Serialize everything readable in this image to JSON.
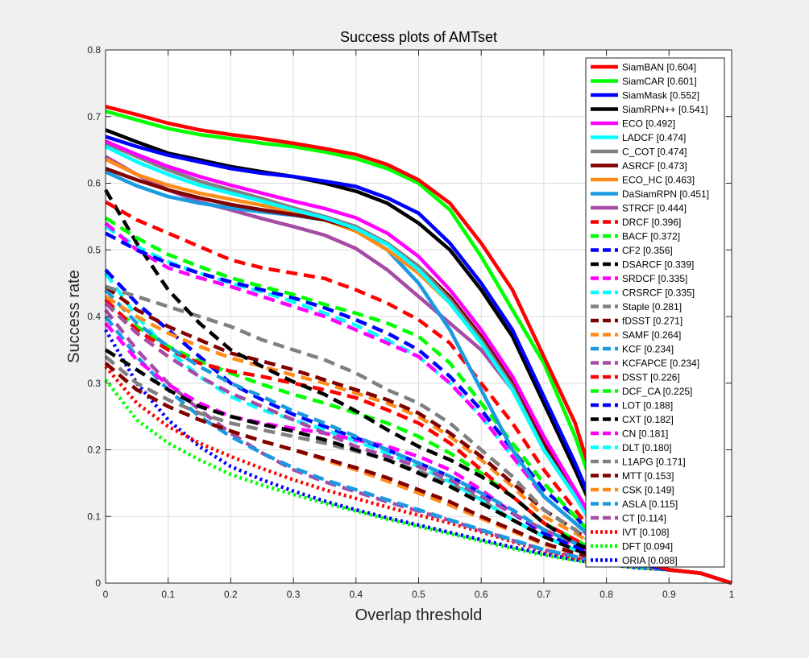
{
  "chart_data": {
    "type": "line",
    "title": "Success plots of AMTset",
    "xlabel": "Overlap threshold",
    "ylabel": "Success rate",
    "xlim": [
      0,
      1
    ],
    "ylim": [
      0,
      0.8
    ],
    "xticks": [
      0,
      0.1,
      0.2,
      0.3,
      0.4,
      0.5,
      0.6,
      0.7,
      0.8,
      0.9,
      1
    ],
    "yticks": [
      0,
      0.1,
      0.2,
      0.3,
      0.4,
      0.5,
      0.6,
      0.7,
      0.8
    ],
    "xtick_labels": [
      "0",
      "0.1",
      "0.2",
      "0.3",
      "0.4",
      "0.5",
      "0.6",
      "0.7",
      "0.8",
      "0.9",
      "1"
    ],
    "ytick_labels": [
      "0",
      "0.1",
      "0.2",
      "0.3",
      "0.4",
      "0.5",
      "0.6",
      "0.7",
      "0.8"
    ],
    "grid": true,
    "legend_position": "top-right",
    "x": [
      0,
      0.05,
      0.1,
      0.15,
      0.2,
      0.25,
      0.3,
      0.35,
      0.4,
      0.45,
      0.5,
      0.55,
      0.6,
      0.65,
      0.7,
      0.75,
      0.8,
      0.85,
      0.9,
      0.95,
      1
    ],
    "series": [
      {
        "name": "SiamBAN [0.604]",
        "color": "#ff0000",
        "style": "solid",
        "values": [
          0.715,
          0.703,
          0.69,
          0.68,
          0.673,
          0.667,
          0.66,
          0.652,
          0.643,
          0.628,
          0.605,
          0.57,
          0.51,
          0.44,
          0.34,
          0.24,
          0.09,
          0.035,
          0.02,
          0.015,
          0.0
        ]
      },
      {
        "name": "SiamCAR [0.601]",
        "color": "#00ff00",
        "style": "solid",
        "values": [
          0.708,
          0.695,
          0.682,
          0.673,
          0.667,
          0.66,
          0.655,
          0.647,
          0.637,
          0.622,
          0.6,
          0.56,
          0.49,
          0.41,
          0.33,
          0.22,
          0.085,
          0.035,
          0.02,
          0.015,
          0.0
        ]
      },
      {
        "name": "SiamMask [0.552]",
        "color": "#0000ff",
        "style": "solid",
        "values": [
          0.67,
          0.655,
          0.642,
          0.632,
          0.622,
          0.615,
          0.61,
          0.603,
          0.595,
          0.578,
          0.555,
          0.51,
          0.45,
          0.38,
          0.28,
          0.18,
          0.07,
          0.03,
          0.02,
          0.015,
          0.0
        ]
      },
      {
        "name": "SiamRPN++ [0.541]",
        "color": "#000000",
        "style": "solid",
        "values": [
          0.68,
          0.662,
          0.645,
          0.635,
          0.625,
          0.617,
          0.61,
          0.6,
          0.588,
          0.57,
          0.54,
          0.5,
          0.44,
          0.37,
          0.27,
          0.17,
          0.065,
          0.03,
          0.02,
          0.015,
          0.0
        ]
      },
      {
        "name": "ECO [0.492]",
        "color": "#ff00ff",
        "style": "solid",
        "values": [
          0.663,
          0.643,
          0.625,
          0.61,
          0.597,
          0.585,
          0.573,
          0.562,
          0.548,
          0.525,
          0.49,
          0.44,
          0.38,
          0.31,
          0.22,
          0.14,
          0.06,
          0.03,
          0.02,
          0.015,
          0.0
        ]
      },
      {
        "name": "LADCF [0.474]",
        "color": "#00ffff",
        "style": "solid",
        "values": [
          0.655,
          0.632,
          0.613,
          0.597,
          0.585,
          0.573,
          0.56,
          0.548,
          0.532,
          0.508,
          0.47,
          0.42,
          0.36,
          0.29,
          0.2,
          0.13,
          0.055,
          0.03,
          0.02,
          0.015,
          0.0
        ]
      },
      {
        "name": "C_COT [0.474]",
        "color": "#808080",
        "style": "solid",
        "values": [
          0.66,
          0.64,
          0.62,
          0.603,
          0.59,
          0.577,
          0.563,
          0.55,
          0.535,
          0.51,
          0.475,
          0.425,
          0.365,
          0.295,
          0.2,
          0.13,
          0.055,
          0.03,
          0.02,
          0.015,
          0.0
        ]
      },
      {
        "name": "ASRCF [0.473]",
        "color": "#800000",
        "style": "solid",
        "values": [
          0.622,
          0.605,
          0.59,
          0.578,
          0.568,
          0.56,
          0.553,
          0.545,
          0.532,
          0.51,
          0.475,
          0.43,
          0.37,
          0.3,
          0.21,
          0.135,
          0.055,
          0.03,
          0.02,
          0.015,
          0.0
        ]
      },
      {
        "name": "ECO_HC [0.463]",
        "color": "#ff8c1a",
        "style": "solid",
        "values": [
          0.636,
          0.613,
          0.597,
          0.585,
          0.576,
          0.567,
          0.557,
          0.545,
          0.528,
          0.5,
          0.465,
          0.42,
          0.36,
          0.29,
          0.2,
          0.13,
          0.055,
          0.03,
          0.02,
          0.015,
          0.0
        ]
      },
      {
        "name": "DaSiamRPN [0.451]",
        "color": "#1a9ae0",
        "style": "solid",
        "values": [
          0.617,
          0.596,
          0.58,
          0.57,
          0.563,
          0.557,
          0.552,
          0.545,
          0.53,
          0.5,
          0.45,
          0.38,
          0.29,
          0.2,
          0.13,
          0.09,
          0.05,
          0.03,
          0.02,
          0.015,
          0.0
        ]
      },
      {
        "name": "STRCF [0.444]",
        "color": "#a64ca6",
        "style": "solid",
        "values": [
          0.64,
          0.613,
          0.59,
          0.572,
          0.56,
          0.547,
          0.535,
          0.522,
          0.502,
          0.47,
          0.43,
          0.39,
          0.35,
          0.29,
          0.2,
          0.13,
          0.055,
          0.03,
          0.02,
          0.015,
          0.0
        ]
      },
      {
        "name": "DRCF [0.396]",
        "color": "#ff0000",
        "style": "dashed",
        "values": [
          0.572,
          0.545,
          0.525,
          0.505,
          0.485,
          0.473,
          0.465,
          0.457,
          0.44,
          0.42,
          0.395,
          0.36,
          0.3,
          0.24,
          0.17,
          0.11,
          0.05,
          0.03,
          0.02,
          0.015,
          0.0
        ]
      },
      {
        "name": "BACF [0.372]",
        "color": "#00ff00",
        "style": "dashed",
        "values": [
          0.548,
          0.518,
          0.493,
          0.475,
          0.458,
          0.445,
          0.433,
          0.418,
          0.405,
          0.39,
          0.37,
          0.33,
          0.27,
          0.21,
          0.15,
          0.1,
          0.05,
          0.03,
          0.02,
          0.015,
          0.0
        ]
      },
      {
        "name": "CF2 [0.356]",
        "color": "#0000ff",
        "style": "dashed",
        "values": [
          0.525,
          0.5,
          0.48,
          0.465,
          0.452,
          0.44,
          0.428,
          0.413,
          0.395,
          0.375,
          0.35,
          0.31,
          0.26,
          0.2,
          0.14,
          0.1,
          0.05,
          0.03,
          0.02,
          0.015,
          0.0
        ]
      },
      {
        "name": "DSARCF [0.339]",
        "color": "#000000",
        "style": "dashed",
        "values": [
          0.59,
          0.51,
          0.44,
          0.39,
          0.35,
          0.325,
          0.302,
          0.283,
          0.258,
          0.23,
          0.205,
          0.185,
          0.16,
          0.13,
          0.09,
          0.06,
          0.04,
          0.03,
          0.02,
          0.015,
          0.0
        ]
      },
      {
        "name": "SRDCF [0.335]",
        "color": "#ff00ff",
        "style": "dashed",
        "values": [
          0.54,
          0.5,
          0.473,
          0.458,
          0.445,
          0.43,
          0.415,
          0.4,
          0.38,
          0.36,
          0.34,
          0.3,
          0.25,
          0.19,
          0.13,
          0.09,
          0.045,
          0.03,
          0.02,
          0.015,
          0.0
        ]
      },
      {
        "name": "CRSRCF [0.335]",
        "color": "#00ffff",
        "style": "dashed",
        "values": [
          0.535,
          0.505,
          0.482,
          0.465,
          0.45,
          0.437,
          0.422,
          0.405,
          0.387,
          0.365,
          0.34,
          0.3,
          0.25,
          0.19,
          0.13,
          0.09,
          0.045,
          0.03,
          0.02,
          0.015,
          0.0
        ]
      },
      {
        "name": "Staple [0.281]",
        "color": "#808080",
        "style": "dashed",
        "values": [
          0.445,
          0.43,
          0.415,
          0.4,
          0.385,
          0.365,
          0.35,
          0.335,
          0.315,
          0.29,
          0.27,
          0.24,
          0.2,
          0.16,
          0.11,
          0.08,
          0.045,
          0.03,
          0.02,
          0.015,
          0.0
        ]
      },
      {
        "name": "fDSST [0.271]",
        "color": "#800000",
        "style": "dashed",
        "values": [
          0.445,
          0.41,
          0.385,
          0.365,
          0.345,
          0.333,
          0.32,
          0.305,
          0.29,
          0.275,
          0.255,
          0.225,
          0.19,
          0.15,
          0.11,
          0.08,
          0.045,
          0.03,
          0.02,
          0.015,
          0.0
        ]
      },
      {
        "name": "SAMF [0.264]",
        "color": "#ff8c1a",
        "style": "dashed",
        "values": [
          0.43,
          0.4,
          0.375,
          0.355,
          0.338,
          0.325,
          0.312,
          0.3,
          0.285,
          0.27,
          0.25,
          0.22,
          0.185,
          0.145,
          0.1,
          0.075,
          0.045,
          0.03,
          0.02,
          0.015,
          0.0
        ]
      },
      {
        "name": "KCF [0.234]",
        "color": "#1a9ae0",
        "style": "dashed",
        "values": [
          0.44,
          0.39,
          0.355,
          0.325,
          0.3,
          0.28,
          0.258,
          0.24,
          0.22,
          0.2,
          0.18,
          0.16,
          0.135,
          0.11,
          0.08,
          0.06,
          0.04,
          0.03,
          0.02,
          0.015,
          0.0
        ]
      },
      {
        "name": "KCFAPCE [0.234]",
        "color": "#a64ca6",
        "style": "dashed",
        "values": [
          0.42,
          0.375,
          0.34,
          0.31,
          0.285,
          0.265,
          0.245,
          0.225,
          0.205,
          0.19,
          0.175,
          0.155,
          0.13,
          0.105,
          0.08,
          0.06,
          0.04,
          0.03,
          0.02,
          0.015,
          0.0
        ]
      },
      {
        "name": "DSST [0.226]",
        "color": "#ff0000",
        "style": "dashed",
        "values": [
          0.425,
          0.38,
          0.35,
          0.33,
          0.318,
          0.31,
          0.3,
          0.29,
          0.278,
          0.26,
          0.24,
          0.21,
          0.17,
          0.13,
          0.09,
          0.065,
          0.04,
          0.03,
          0.02,
          0.015,
          0.0
        ]
      },
      {
        "name": "DCF_CA [0.225]",
        "color": "#00ff00",
        "style": "dashed",
        "values": [
          0.42,
          0.385,
          0.355,
          0.333,
          0.315,
          0.298,
          0.283,
          0.27,
          0.255,
          0.24,
          0.22,
          0.195,
          0.165,
          0.13,
          0.09,
          0.065,
          0.04,
          0.03,
          0.02,
          0.015,
          0.0
        ]
      },
      {
        "name": "LOT [0.188]",
        "color": "#0000ff",
        "style": "dashed",
        "values": [
          0.47,
          0.42,
          0.38,
          0.34,
          0.3,
          0.275,
          0.253,
          0.235,
          0.218,
          0.2,
          0.18,
          0.16,
          0.135,
          0.105,
          0.075,
          0.055,
          0.035,
          0.03,
          0.02,
          0.015,
          0.0
        ]
      },
      {
        "name": "CXT [0.182]",
        "color": "#000000",
        "style": "dashed",
        "values": [
          0.35,
          0.32,
          0.29,
          0.265,
          0.25,
          0.238,
          0.228,
          0.215,
          0.2,
          0.185,
          0.165,
          0.145,
          0.12,
          0.095,
          0.07,
          0.05,
          0.035,
          0.03,
          0.02,
          0.015,
          0.0
        ]
      },
      {
        "name": "CN [0.181]",
        "color": "#ff00ff",
        "style": "dashed",
        "values": [
          0.39,
          0.335,
          0.298,
          0.27,
          0.25,
          0.24,
          0.232,
          0.225,
          0.215,
          0.205,
          0.19,
          0.17,
          0.14,
          0.105,
          0.075,
          0.055,
          0.035,
          0.03,
          0.02,
          0.015,
          0.0
        ]
      },
      {
        "name": "DLT [0.180]",
        "color": "#00ffff",
        "style": "dashed",
        "values": [
          0.465,
          0.4,
          0.35,
          0.31,
          0.28,
          0.26,
          0.245,
          0.23,
          0.213,
          0.195,
          0.175,
          0.152,
          0.125,
          0.095,
          0.07,
          0.05,
          0.035,
          0.03,
          0.02,
          0.015,
          0.0
        ]
      },
      {
        "name": "L1APG [0.171]",
        "color": "#808080",
        "style": "dashed",
        "values": [
          0.34,
          0.3,
          0.275,
          0.255,
          0.24,
          0.23,
          0.22,
          0.21,
          0.198,
          0.185,
          0.168,
          0.15,
          0.125,
          0.095,
          0.07,
          0.05,
          0.035,
          0.03,
          0.02,
          0.015,
          0.0
        ]
      },
      {
        "name": "MTT [0.153]",
        "color": "#800000",
        "style": "dashed",
        "values": [
          0.33,
          0.29,
          0.265,
          0.245,
          0.228,
          0.213,
          0.2,
          0.187,
          0.173,
          0.158,
          0.14,
          0.122,
          0.1,
          0.08,
          0.06,
          0.045,
          0.035,
          0.03,
          0.02,
          0.015,
          0.0
        ]
      },
      {
        "name": "CSK [0.149]",
        "color": "#ff8c1a",
        "style": "dashed",
        "values": [
          0.33,
          0.29,
          0.265,
          0.245,
          0.228,
          0.213,
          0.2,
          0.185,
          0.17,
          0.153,
          0.135,
          0.117,
          0.097,
          0.078,
          0.058,
          0.045,
          0.035,
          0.03,
          0.02,
          0.015,
          0.0
        ]
      },
      {
        "name": "ASLA [0.115]",
        "color": "#1a9ae0",
        "style": "dashed",
        "values": [
          0.4,
          0.34,
          0.29,
          0.25,
          0.22,
          0.195,
          0.173,
          0.155,
          0.14,
          0.125,
          0.11,
          0.095,
          0.08,
          0.065,
          0.05,
          0.04,
          0.03,
          0.025,
          0.02,
          0.015,
          0.0
        ]
      },
      {
        "name": "CT [0.114]",
        "color": "#a64ca6",
        "style": "dashed",
        "values": [
          0.41,
          0.35,
          0.3,
          0.26,
          0.225,
          0.195,
          0.17,
          0.152,
          0.137,
          0.122,
          0.108,
          0.094,
          0.079,
          0.064,
          0.05,
          0.04,
          0.03,
          0.025,
          0.02,
          0.015,
          0.0
        ]
      },
      {
        "name": "IVT [0.108]",
        "color": "#ff0000",
        "style": "dotted",
        "values": [
          0.325,
          0.27,
          0.235,
          0.21,
          0.19,
          0.172,
          0.155,
          0.14,
          0.127,
          0.114,
          0.102,
          0.09,
          0.077,
          0.062,
          0.048,
          0.038,
          0.03,
          0.025,
          0.02,
          0.015,
          0.0
        ]
      },
      {
        "name": "DFT [0.094]",
        "color": "#00ff00",
        "style": "dotted",
        "values": [
          0.305,
          0.245,
          0.21,
          0.185,
          0.163,
          0.147,
          0.133,
          0.12,
          0.108,
          0.096,
          0.085,
          0.074,
          0.063,
          0.052,
          0.042,
          0.034,
          0.028,
          0.023,
          0.02,
          0.015,
          0.0
        ]
      },
      {
        "name": "ORIA [0.088]",
        "color": "#0000ff",
        "style": "dotted",
        "values": [
          0.38,
          0.3,
          0.245,
          0.205,
          0.175,
          0.155,
          0.138,
          0.123,
          0.11,
          0.098,
          0.087,
          0.076,
          0.065,
          0.054,
          0.044,
          0.035,
          0.028,
          0.023,
          0.02,
          0.015,
          0.0
        ]
      }
    ]
  }
}
